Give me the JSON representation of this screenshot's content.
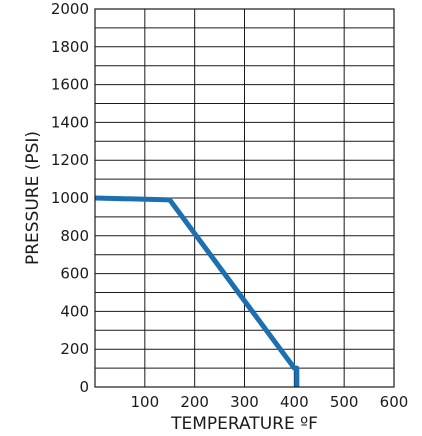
{
  "chart_data": {
    "type": "line",
    "title": "",
    "xlabel": "TEMPERATURE ºF",
    "ylabel": "PRESSURE (PSI)",
    "xlim": [
      0,
      600
    ],
    "ylim": [
      0,
      2000
    ],
    "x_ticks": [
      0,
      100,
      200,
      300,
      400,
      500,
      600
    ],
    "x_tick_labels": [
      "",
      "100",
      "200",
      "300",
      "400",
      "500",
      "600"
    ],
    "x_grid_step": 100,
    "y_ticks": [
      0,
      200,
      400,
      600,
      800,
      1000,
      1200,
      1400,
      1600,
      1800,
      2000
    ],
    "y_tick_labels": [
      "0",
      "200",
      "400",
      "600",
      "800",
      "1000",
      "1200",
      "1400",
      "1600",
      "1800",
      "2000"
    ],
    "y_grid_step": 100,
    "grid": true,
    "legend": "none",
    "series": [
      {
        "color": "#1c6fb0",
        "x": [
          0,
          150,
          400,
          405,
          405
        ],
        "y": [
          1000,
          990,
          100,
          100,
          0
        ]
      }
    ]
  }
}
